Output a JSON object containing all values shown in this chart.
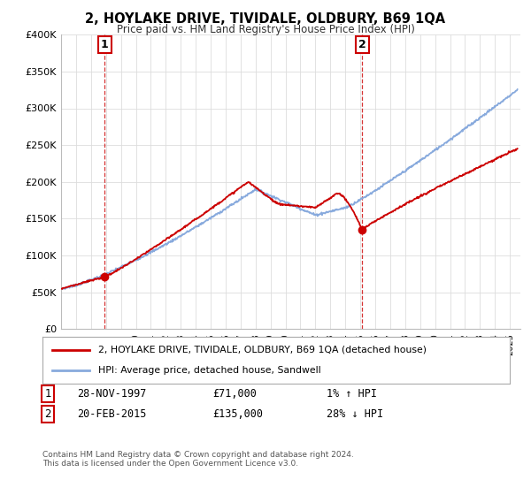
{
  "title": "2, HOYLAKE DRIVE, TIVIDALE, OLDBURY, B69 1QA",
  "subtitle": "Price paid vs. HM Land Registry's House Price Index (HPI)",
  "ylim": [
    0,
    400000
  ],
  "yticks": [
    0,
    50000,
    100000,
    150000,
    200000,
    250000,
    300000,
    350000,
    400000
  ],
  "ytick_labels": [
    "£0",
    "£50K",
    "£100K",
    "£150K",
    "£200K",
    "£250K",
    "£300K",
    "£350K",
    "£400K"
  ],
  "sale1_date_num": 1997.91,
  "sale1_price": 71000,
  "sale1_text": "28-NOV-1997",
  "sale1_amount": "£71,000",
  "sale1_hpi": "1% ↑ HPI",
  "sale2_date_num": 2015.13,
  "sale2_price": 135000,
  "sale2_text": "20-FEB-2015",
  "sale2_amount": "£135,000",
  "sale2_hpi": "28% ↓ HPI",
  "house_line_color": "#cc0000",
  "hpi_line_color": "#88aadd",
  "sale_marker_color": "#cc0000",
  "dashed_line_color": "#cc0000",
  "label_box_color": "#cc0000",
  "background_color": "#ffffff",
  "grid_color": "#dddddd",
  "legend_house": "2, HOYLAKE DRIVE, TIVIDALE, OLDBURY, B69 1QA (detached house)",
  "legend_hpi": "HPI: Average price, detached house, Sandwell",
  "footer": "Contains HM Land Registry data © Crown copyright and database right 2024.\nThis data is licensed under the Open Government Licence v3.0."
}
